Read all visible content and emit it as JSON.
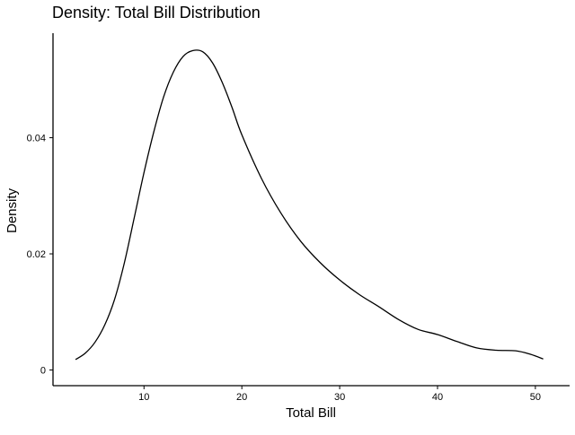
{
  "chart_data": {
    "type": "line",
    "title": "Density: Total Bill Distribution",
    "xlabel": "Total Bill",
    "ylabel": "Density",
    "xlim": [
      0.7,
      53.5
    ],
    "ylim": [
      -0.0027,
      0.058
    ],
    "xticks": [
      10,
      20,
      30,
      40,
      50
    ],
    "yticks": [
      0,
      0.02,
      0.04
    ],
    "ytick_labels": [
      "0",
      "0.02",
      "0.04"
    ],
    "grid": false,
    "legend": "none",
    "colors": {
      "line": "#000000",
      "axis": "#000000",
      "background": "#ffffff"
    },
    "series": [
      {
        "x": [
          3.0,
          4.0,
          5.0,
          6.0,
          7.0,
          8.0,
          9.0,
          10.0,
          11.0,
          12.0,
          13.0,
          14.0,
          15.0,
          16.0,
          17.0,
          18.0,
          19.0,
          20.0,
          22.0,
          24.0,
          26.0,
          28.0,
          30.0,
          32.0,
          34.0,
          36.0,
          38.0,
          40.0,
          42.0,
          44.0,
          46.0,
          48.0,
          49.5,
          50.8
        ],
        "y": [
          0.0018,
          0.0029,
          0.0048,
          0.0078,
          0.0122,
          0.0185,
          0.0262,
          0.034,
          0.041,
          0.047,
          0.0513,
          0.054,
          0.055,
          0.0548,
          0.0529,
          0.0495,
          0.0452,
          0.0405,
          0.033,
          0.027,
          0.0222,
          0.0185,
          0.0155,
          0.013,
          0.0109,
          0.0087,
          0.007,
          0.0061,
          0.0049,
          0.0038,
          0.0034,
          0.0033,
          0.0027,
          0.0019
        ]
      }
    ]
  }
}
